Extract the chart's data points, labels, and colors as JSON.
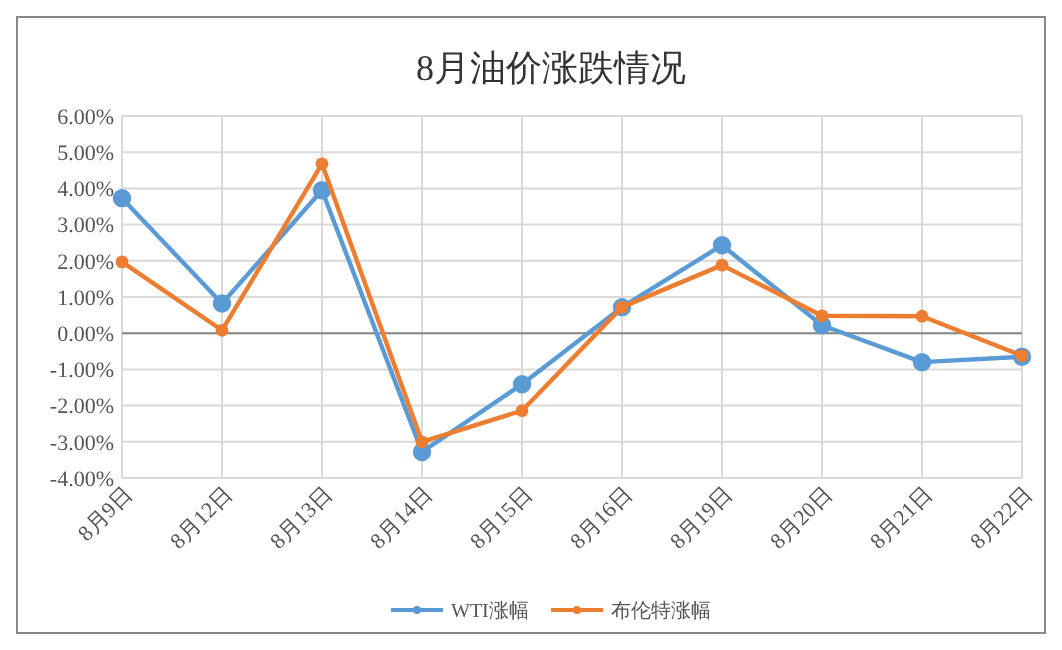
{
  "chart_data": {
    "type": "line",
    "title": "8月油价涨跌情况",
    "categories": [
      "8月9日",
      "8月12日",
      "8月13日",
      "8月14日",
      "8月15日",
      "8月16日",
      "8月19日",
      "8月20日",
      "8月21日",
      "8月22日"
    ],
    "series": [
      {
        "name": "WTI涨幅",
        "color": "#5b9bd5",
        "values": [
          3.73,
          0.82,
          3.95,
          -3.28,
          -1.41,
          0.72,
          2.43,
          0.22,
          -0.8,
          -0.65
        ]
      },
      {
        "name": "布伦特涨幅",
        "color": "#ed7d31",
        "values": [
          1.97,
          0.08,
          4.68,
          -3.0,
          -2.14,
          0.72,
          1.88,
          0.48,
          0.47,
          -0.62
        ]
      }
    ],
    "ylim": [
      -4,
      6
    ],
    "yticks": [
      {
        "value": -4,
        "label": "-4.00%"
      },
      {
        "value": -3,
        "label": "-3.00%"
      },
      {
        "value": -2,
        "label": "-2.00%"
      },
      {
        "value": -1,
        "label": "-1.00%"
      },
      {
        "value": 0,
        "label": "0.00%"
      },
      {
        "value": 1,
        "label": "1.00%"
      },
      {
        "value": 2,
        "label": "2.00%"
      },
      {
        "value": 3,
        "label": "3.00%"
      },
      {
        "value": 4,
        "label": "4.00%"
      },
      {
        "value": 5,
        "label": "5.00%"
      },
      {
        "value": 6,
        "label": "6.00%"
      }
    ],
    "grid": true,
    "legend": "bottom",
    "marker": "circle",
    "line_style": "solid"
  }
}
